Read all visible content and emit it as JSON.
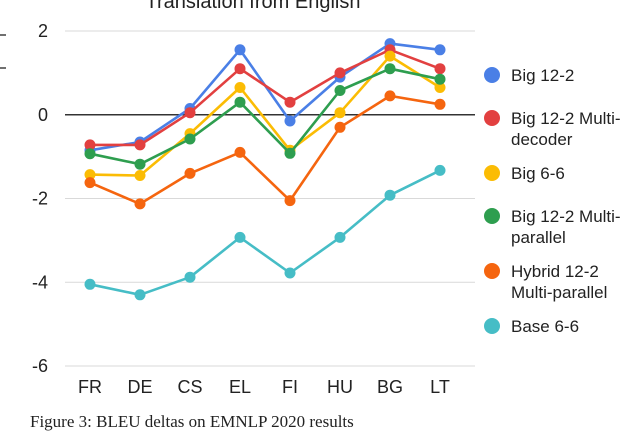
{
  "chart_data": {
    "type": "line",
    "title": "Translation from English",
    "xlabel": "",
    "ylabel": "",
    "categories": [
      "FR",
      "DE",
      "CS",
      "EL",
      "FI",
      "HU",
      "BG",
      "LT"
    ],
    "ylim": [
      -6,
      2
    ],
    "yticks": [
      "2",
      "0",
      "-2",
      "-4",
      "-6"
    ],
    "ytick_values": [
      2,
      0,
      -2,
      -4,
      -6
    ],
    "zero_line": true,
    "grid": "horizontal",
    "legend_position": "right",
    "series": [
      {
        "name": "Big 12-2",
        "name_lines": [
          "Big 12-2"
        ],
        "color": "#4a7fe6",
        "values": [
          -0.85,
          -0.65,
          0.15,
          1.55,
          -0.15,
          0.9,
          1.7,
          1.55
        ]
      },
      {
        "name": "Big 12-2 Multi-decoder",
        "name_lines": [
          "Big 12-2 Multi-",
          "decoder"
        ],
        "color": "#e24040",
        "values": [
          -0.72,
          -0.72,
          0.05,
          1.1,
          0.3,
          1.0,
          1.55,
          1.1
        ]
      },
      {
        "name": "Big 6-6",
        "name_lines": [
          "Big 6-6"
        ],
        "color": "#fbbc04",
        "values": [
          -1.43,
          -1.45,
          -0.45,
          0.65,
          -0.85,
          0.05,
          1.4,
          0.65
        ]
      },
      {
        "name": "Big 12-2 Multi-parallel",
        "name_lines": [
          "Big 12-2 Multi-",
          "parallel"
        ],
        "color": "#2e9e4f",
        "values": [
          -0.93,
          -1.18,
          -0.58,
          0.3,
          -0.92,
          0.58,
          1.1,
          0.85
        ]
      },
      {
        "name": "Hybrid 12-2 Multi-parallel",
        "name_lines": [
          "Hybrid 12-2",
          "Multi-parallel"
        ],
        "color": "#f5650f",
        "values": [
          -1.62,
          -2.13,
          -1.4,
          -0.9,
          -2.05,
          -0.3,
          0.45,
          0.25
        ]
      },
      {
        "name": "Base 6-6",
        "name_lines": [
          "Base 6-6"
        ],
        "color": "#46bdc6",
        "values": [
          -4.05,
          -4.3,
          -3.88,
          -2.93,
          -3.78,
          -2.93,
          -1.92,
          -1.33
        ]
      }
    ]
  },
  "caption": "Figure 3: BLEU deltas on EMNLP 2020 results"
}
